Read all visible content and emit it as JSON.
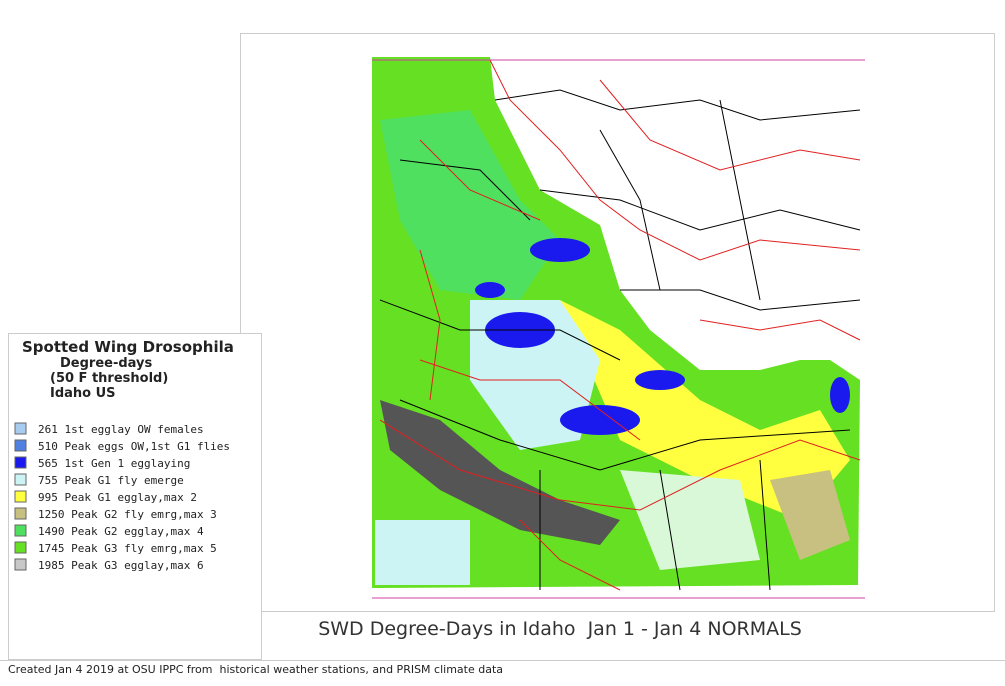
{
  "legend": {
    "title": "Spotted Wing Drosophila",
    "subtitle_lines": [
      "Degree-days",
      "(50 F threshold)",
      "Idaho US"
    ],
    "items": [
      {
        "label": "261 1st egglay OW females",
        "color": "#a8ccf0"
      },
      {
        "label": "510 Peak eggs OW,1st G1 flies",
        "color": "#5080e0"
      },
      {
        "label": "565 1st Gen 1 egglaying",
        "color": "#1a1aee"
      },
      {
        "label": "755 Peak G1 fly emerge",
        "color": "#ccf4f4"
      },
      {
        "label": "995 Peak G1 egglay,max 2",
        "color": "#ffff40"
      },
      {
        "label": "1250 Peak G2 fly emrg,max 3",
        "color": "#c8c080"
      },
      {
        "label": "1490 Peak G2 egglay,max 4",
        "color": "#50e060"
      },
      {
        "label": "1745 Peak G3 fly emrg,max 5",
        "color": "#66e022"
      },
      {
        "label": "1985 Peak G3 egglay,max 6",
        "color": "#c8c8c8"
      }
    ]
  },
  "map": {
    "title": "SWD Degree-Days in Idaho  Jan 1 - Jan 4 NORMALS"
  },
  "footer": "Created Jan 4 2019 at OSU IPPC from  historical weather stations, and PRISM climate data"
}
